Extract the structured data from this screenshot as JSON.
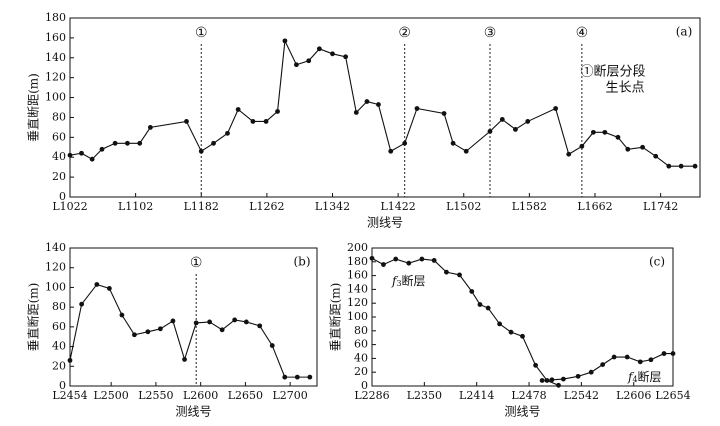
{
  "chart_data": [
    {
      "panel": "(a)",
      "type": "line",
      "xlabel": "测线号",
      "ylabel": "垂直断距(m)",
      "ylim": [
        0,
        180
      ],
      "xlim": [
        1022,
        1790
      ],
      "yticks": [
        0,
        20,
        40,
        60,
        80,
        100,
        120,
        140,
        160,
        180
      ],
      "xticks": [
        1022,
        1102,
        1182,
        1262,
        1342,
        1422,
        1502,
        1582,
        1662,
        1742
      ],
      "xtick_labels": [
        "L1022",
        "L1102",
        "L1182",
        "L1262",
        "L1342",
        "L1422",
        "L1502",
        "L1582",
        "L1662",
        "L1742"
      ],
      "grid": false,
      "annotation": "①断层分段生长点",
      "markers": [
        {
          "label": "①",
          "x": 1182
        },
        {
          "label": "②",
          "x": 1430
        },
        {
          "label": "③",
          "x": 1534
        },
        {
          "label": "④",
          "x": 1646
        }
      ],
      "x": [
        1022,
        1036,
        1049,
        1061,
        1077,
        1092,
        1107,
        1120,
        1164,
        1182,
        1197,
        1214,
        1227,
        1245,
        1261,
        1275,
        1284,
        1298,
        1313,
        1326,
        1342,
        1358,
        1371,
        1384,
        1398,
        1413,
        1430,
        1445,
        1478,
        1489,
        1505,
        1534,
        1549,
        1565,
        1580,
        1614,
        1630,
        1646,
        1660,
        1674,
        1690,
        1702,
        1720,
        1736,
        1752,
        1767,
        1784
      ],
      "y": [
        42,
        44,
        38,
        48,
        54,
        54,
        54,
        70,
        76,
        46,
        54,
        64,
        88,
        76,
        76,
        86,
        157,
        133,
        137,
        149,
        144,
        141,
        85,
        96,
        93,
        46,
        54,
        89,
        84,
        54,
        46,
        66,
        78,
        68,
        76,
        89,
        43,
        51,
        65,
        65,
        60,
        48,
        50,
        41,
        31,
        31,
        31
      ]
    },
    {
      "panel": "(b)",
      "type": "line",
      "xlabel": "测线号",
      "ylabel": "垂直断距(m)",
      "ylim": [
        0,
        140
      ],
      "xlim": [
        2454,
        2730
      ],
      "yticks": [
        0,
        20,
        40,
        60,
        80,
        100,
        120,
        140
      ],
      "xticks": [
        2454,
        2500,
        2550,
        2600,
        2650,
        2700
      ],
      "xtick_labels": [
        "L2454",
        "L2500",
        "L2550",
        "L2600",
        "L2650",
        "L2700"
      ],
      "grid": false,
      "markers": [
        {
          "label": "①",
          "x": 2595
        }
      ],
      "x": [
        2454,
        2467,
        2484,
        2498,
        2512,
        2526,
        2541,
        2555,
        2569,
        2582,
        2595,
        2610,
        2624,
        2638,
        2651,
        2666,
        2680,
        2694,
        2708,
        2722
      ],
      "y": [
        26,
        83,
        103,
        99,
        72,
        52,
        55,
        58,
        66,
        27,
        64,
        65,
        57,
        67,
        65,
        61,
        41,
        9,
        9,
        9
      ]
    },
    {
      "panel": "(c)",
      "type": "line",
      "xlabel": "测线号",
      "ylabel": "垂直断距(m)",
      "ylim": [
        0,
        200
      ],
      "xlim": [
        2286,
        2654
      ],
      "yticks": [
        0,
        20,
        40,
        60,
        80,
        100,
        120,
        140,
        160,
        180,
        200
      ],
      "xticks": [
        2286,
        2350,
        2414,
        2478,
        2542,
        2606,
        2654
      ],
      "xtick_labels": [
        "L2286",
        "L2350",
        "L2414",
        "L2478",
        "L2542",
        "L2606",
        "L2654"
      ],
      "grid": false,
      "series": [
        {
          "name": "f3断层",
          "x": [
            2286,
            2300,
            2315,
            2331,
            2347,
            2362,
            2377,
            2393,
            2408,
            2418,
            2428,
            2442,
            2456,
            2470,
            2486,
            2500,
            2514
          ],
          "y": [
            185,
            176,
            184,
            178,
            184,
            182,
            165,
            161,
            137,
            118,
            113,
            90,
            78,
            72,
            30,
            8,
            1
          ]
        },
        {
          "name": "f4断层",
          "x": [
            2494,
            2506,
            2520,
            2538,
            2554,
            2568,
            2582,
            2598,
            2614,
            2627,
            2643,
            2654
          ],
          "y": [
            8,
            9,
            10,
            14,
            20,
            31,
            42,
            42,
            35,
            38,
            47,
            47
          ]
        }
      ]
    }
  ]
}
